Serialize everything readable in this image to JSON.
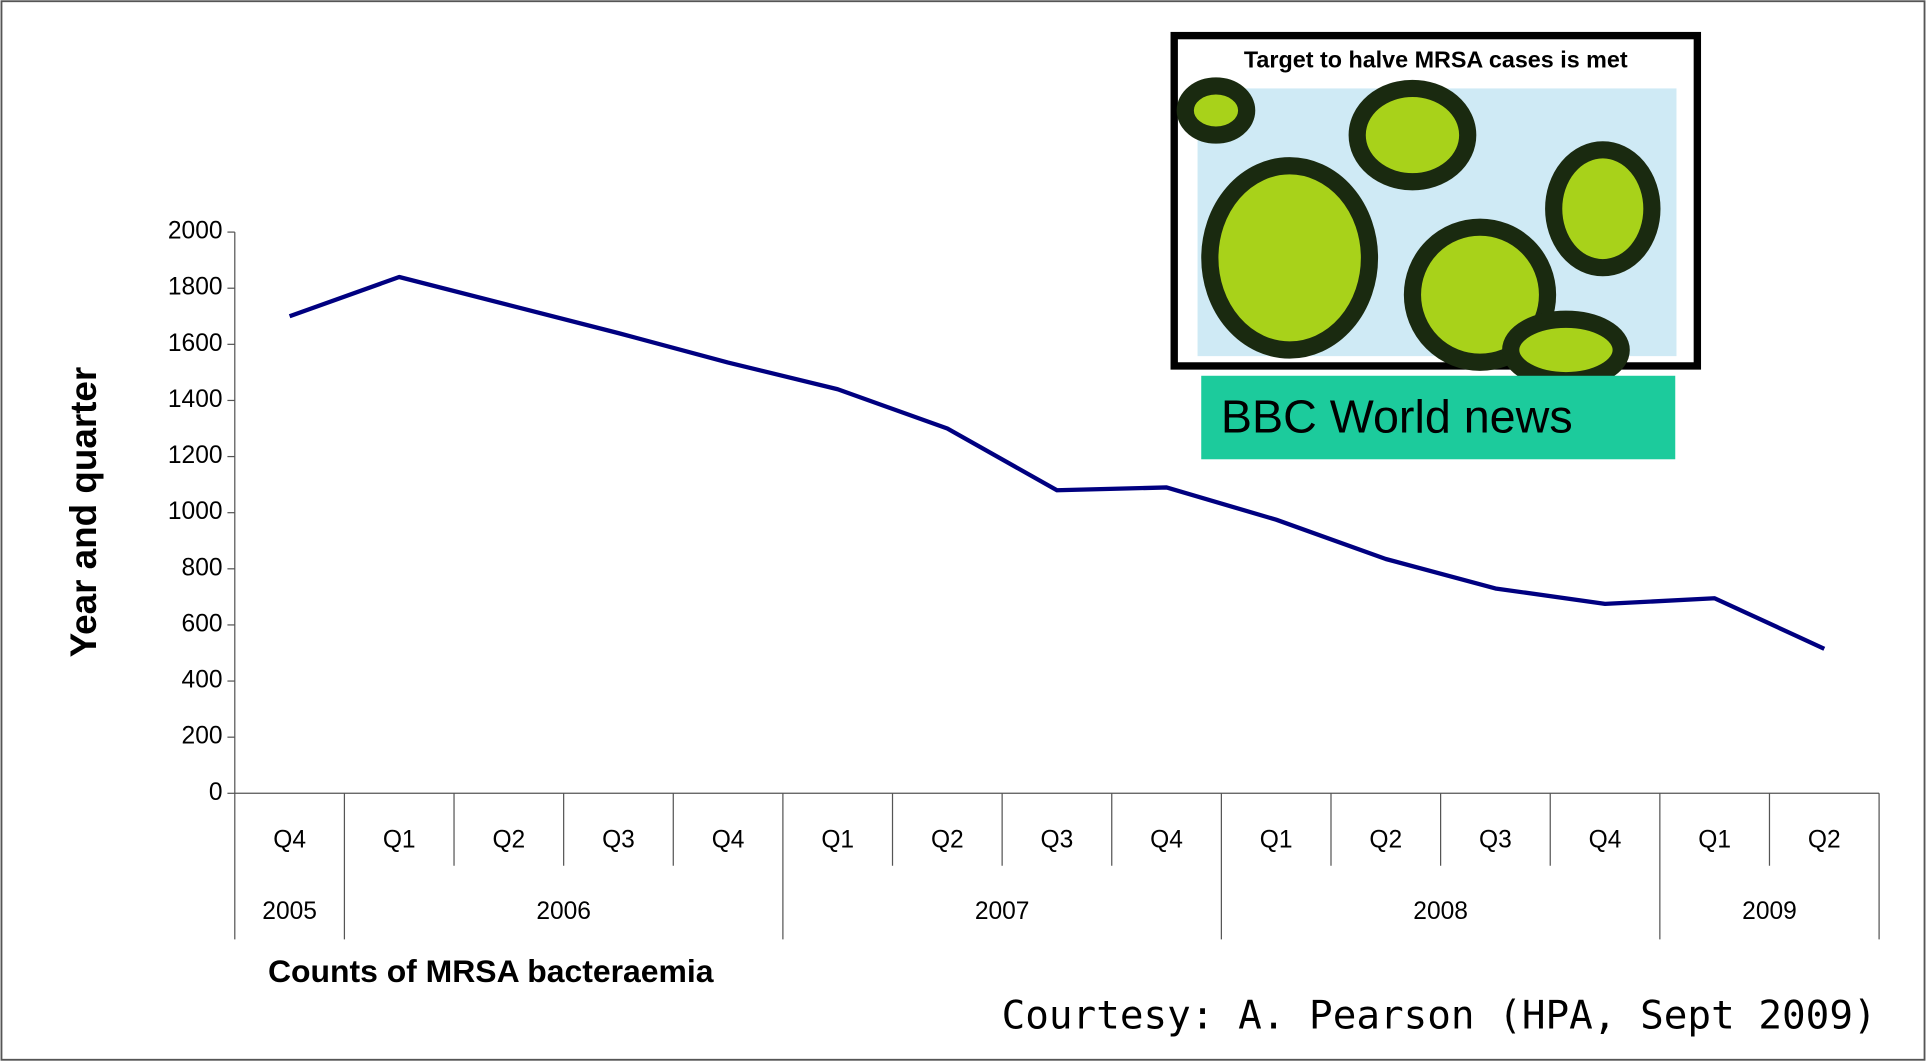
{
  "chart_data": {
    "type": "line",
    "y_axis_label": "Year and quarter",
    "x_axis_label": "Counts of MRSA bacteraemia",
    "categories": [
      "Q4",
      "Q1",
      "Q2",
      "Q3",
      "Q4",
      "Q1",
      "Q2",
      "Q3",
      "Q4",
      "Q1",
      "Q2",
      "Q3",
      "Q4",
      "Q1",
      "Q2"
    ],
    "year_labels": [
      "2005",
      "2006",
      null,
      null,
      null,
      "2007",
      null,
      null,
      null,
      "2008",
      null,
      null,
      null,
      "2009",
      null
    ],
    "series": [
      {
        "color": "#000080",
        "values": [
          1700,
          1840,
          1740,
          1640,
          1535,
          1440,
          1300,
          1080,
          1090,
          975,
          835,
          730,
          675,
          695,
          515
        ]
      }
    ],
    "ylim": [
      0,
      2000
    ],
    "yticks": [
      0,
      200,
      400,
      600,
      800,
      1000,
      1200,
      1400,
      1600,
      1800,
      2000
    ],
    "inset": {
      "headline": "Target to halve MRSA cases is met",
      "caption": "BBC World news"
    },
    "credit": "Courtesy: A. Pearson (HPA, Sept 2009)"
  }
}
